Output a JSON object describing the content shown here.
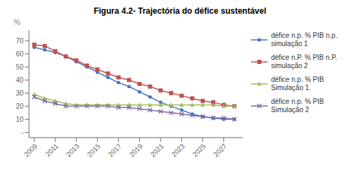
{
  "chart_data": {
    "type": "line",
    "title": "Figura 4.2- Trajectória do défice sustentável",
    "ylabel": "%",
    "x": [
      2009,
      2010,
      2011,
      2012,
      2013,
      2014,
      2015,
      2016,
      2017,
      2018,
      2019,
      2020,
      2021,
      2022,
      2023,
      2024,
      2025,
      2026,
      2027,
      2028
    ],
    "series": [
      {
        "name": "défice n.p. % PIB n.p.\nsimulação 1",
        "color": "#4472C4",
        "marker": "circle",
        "values": [
          65,
          63,
          61,
          58,
          54,
          50,
          46,
          42,
          38,
          35,
          31,
          27,
          23,
          20,
          17,
          14,
          12,
          11,
          10,
          10
        ]
      },
      {
        "name": "défice n.P. % PIB n.P.\nsimulação 2",
        "color": "#C0504D",
        "marker": "square",
        "values": [
          67,
          66,
          62,
          58,
          55,
          51,
          48,
          45,
          42,
          40,
          37,
          35,
          32,
          30,
          28,
          26,
          24,
          23,
          21,
          20
        ]
      },
      {
        "name": "défice n.p. % PIB\nSimulação 1.",
        "color": "#9BBB59",
        "marker": "triangle",
        "values": [
          29,
          26,
          24,
          22,
          21,
          21,
          21,
          21,
          21,
          21,
          21,
          21,
          21,
          21,
          21,
          21,
          21,
          21,
          20,
          20
        ]
      },
      {
        "name": "défice n.p. % PIB\nSimulação 2",
        "color": "#8064A2",
        "marker": "x",
        "values": [
          27,
          24,
          22,
          20,
          20,
          20,
          20,
          20,
          19,
          19,
          18,
          17,
          16,
          15,
          14,
          13,
          12,
          11,
          11,
          10
        ]
      }
    ],
    "xlim": [
      2008.5,
      2028.8
    ],
    "xticks": [
      2009,
      2011,
      2013,
      2015,
      2017,
      2019,
      2021,
      2023,
      2025,
      2027
    ],
    "ylim": [
      -4,
      78
    ],
    "yticks": [
      {
        "value": 0,
        "label": "-"
      },
      10,
      20,
      30,
      40,
      50,
      60,
      70
    ],
    "grid": false,
    "legend": "right"
  }
}
